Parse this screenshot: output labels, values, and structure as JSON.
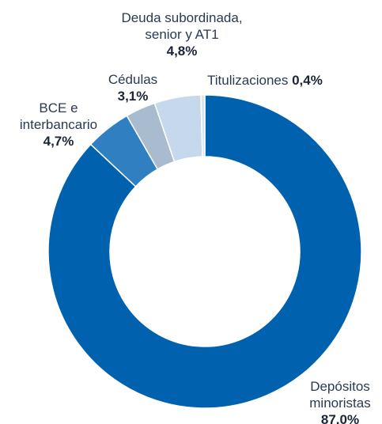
{
  "chart_data": {
    "type": "pie",
    "series": [
      {
        "labels": [
          "Depósitos minoristas",
          "BCE e interbancario",
          "Cédulas",
          "Deuda subordinada, senior y AT1",
          "Titulizaciones"
        ],
        "values": [
          87.0,
          4.7,
          3.1,
          4.8,
          0.4
        ],
        "value_labels": [
          "87.0%",
          "4,7%",
          "3,1%",
          "4,8%",
          "0,4%"
        ]
      }
    ],
    "donut": true,
    "title": "",
    "legend": "none (direct labels)"
  },
  "labels": {
    "depositos": {
      "line1": "Depósitos",
      "line2": "minoristas",
      "value": "87.0%"
    },
    "bce": {
      "line1": "BCE e",
      "line2": "interbancario",
      "value": "4,7%"
    },
    "cedulas": {
      "line1": "Cédulas",
      "value": "3,1%"
    },
    "deuda": {
      "line1": "Deuda subordinada,",
      "line2": "senior y AT1",
      "value": "4,8%"
    },
    "titulizaciones": {
      "line1": "Titulizaciones",
      "value": "0,4%"
    }
  },
  "colors": {
    "depositos": "#0062ae",
    "bce": "#2f7fc1",
    "cedulas": "#a9bbcf",
    "deuda": "#c6d9ec",
    "titulizaciones": "#d8e6f3"
  }
}
